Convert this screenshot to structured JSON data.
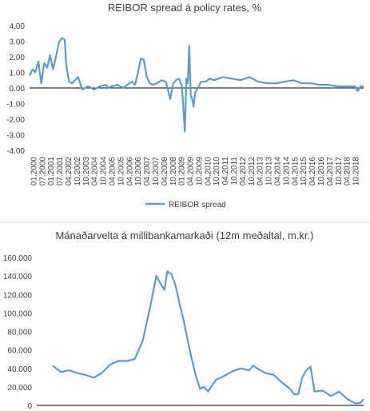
{
  "chart_data": [
    {
      "type": "line",
      "title": "REIBOR spread á policy rates, %",
      "xlabel": "",
      "ylabel": "",
      "ylim": [
        -4,
        4
      ],
      "yticks": [
        "4.00",
        "3.00",
        "2.00",
        "1.00",
        "0.00",
        "-1.00",
        "-2.00",
        "-3.00",
        "-4.00"
      ],
      "xticks": [
        "01.2000",
        "07.2000",
        "01.2001",
        "07.2001",
        "04.2002",
        "10.2002",
        "10.2003",
        "04.2004",
        "10.2004",
        "04.2005",
        "10.2005",
        "04.2006",
        "10.2006",
        "04.2007",
        "10.2007",
        "04.2008",
        "10.2008",
        "01.2009",
        "04.2009",
        "10.2009",
        "04.2010",
        "10.2010",
        "04.2011",
        "10.2011",
        "04.2012",
        "10.2012",
        "04.2013",
        "10.2013",
        "04.2014",
        "10.2014",
        "04.2015",
        "10.2015",
        "04.2016",
        "10.2016",
        "04.2017",
        "10.2017",
        "04.2018",
        "10.2018"
      ],
      "legend": "bottom",
      "grid": false,
      "colors": {
        "line": "#5b9bd5",
        "zero_axis": "#000000"
      },
      "series": [
        {
          "name": "REIBOR spread",
          "x": [
            2000.0,
            2000.17,
            2000.33,
            2000.5,
            2000.67,
            2000.83,
            2001.0,
            2001.17,
            2001.33,
            2001.5,
            2001.67,
            2001.83,
            2002.0,
            2002.08,
            2002.17,
            2002.25,
            2002.42,
            2002.58,
            2002.75,
            2003.0,
            2003.33,
            2003.67,
            2004.0,
            2004.33,
            2004.5,
            2004.67,
            2005.0,
            2005.33,
            2005.67,
            2005.83,
            2006.0,
            2006.17,
            2006.33,
            2006.5,
            2006.67,
            2006.83,
            2007.0,
            2007.25,
            2007.5,
            2007.75,
            2008.0,
            2008.17,
            2008.33,
            2008.5,
            2008.67,
            2008.83,
            2008.92,
            2009.0,
            2009.08,
            2009.17,
            2009.25,
            2009.33,
            2009.42,
            2009.58,
            2009.75,
            2010.0,
            2010.25,
            2010.5,
            2011.0,
            2011.5,
            2012.0,
            2012.5,
            2013.0,
            2013.5,
            2014.0,
            2014.5,
            2015.0,
            2015.5,
            2016.0,
            2016.5,
            2017.0,
            2017.5,
            2018.0,
            2018.5,
            2018.67,
            2018.83,
            2019.0
          ],
          "y": [
            0.8,
            1.2,
            1.0,
            1.7,
            0.3,
            1.6,
            1.3,
            2.1,
            1.2,
            2.0,
            2.9,
            3.2,
            3.1,
            1.5,
            0.9,
            0.4,
            0.3,
            0.5,
            0.7,
            -0.1,
            0.1,
            -0.1,
            0.1,
            0.2,
            0.0,
            0.1,
            0.2,
            0.0,
            0.3,
            0.4,
            0.2,
            1.0,
            1.9,
            1.8,
            0.7,
            0.3,
            0.2,
            0.3,
            0.5,
            0.4,
            -0.7,
            0.3,
            0.5,
            0.6,
            0.1,
            -2.8,
            0.6,
            0.3,
            2.7,
            -0.5,
            -0.7,
            -1.2,
            -0.3,
            0.0,
            0.4,
            0.4,
            0.6,
            0.5,
            0.7,
            0.6,
            0.5,
            0.7,
            0.4,
            0.3,
            0.3,
            0.4,
            0.5,
            0.3,
            0.3,
            0.2,
            0.2,
            0.1,
            0.1,
            0.1,
            -0.2,
            0.1,
            0.1
          ]
        }
      ]
    },
    {
      "type": "line",
      "title": "Mánaðarvelta á millibankamarkaði (12m meðaltal, m.kr.)",
      "xlabel": "",
      "ylabel": "",
      "ylim": [
        0,
        160000
      ],
      "yticks": [
        "160,000",
        "140,000",
        "120,000",
        "100,000",
        "80,000",
        "60,000",
        "40,000",
        "20,000",
        "0"
      ],
      "grid": false,
      "colors": {
        "line": "#5b9bd5",
        "axis": "#000000"
      },
      "series": [
        {
          "x": [
            2000.0,
            2000.5,
            2001.0,
            2001.5,
            2002.0,
            2002.5,
            2003.0,
            2003.5,
            2004.0,
            2004.5,
            2005.0,
            2005.5,
            2005.75,
            2006.0,
            2006.33,
            2006.58,
            2006.83,
            2007.0,
            2007.25,
            2007.5,
            2007.75,
            2008.0,
            2008.25,
            2008.5,
            2008.75,
            2009.0,
            2009.25,
            2009.5,
            2009.75,
            2010.0,
            2010.5,
            2011.0,
            2011.5,
            2012.0,
            2012.25,
            2012.5,
            2013.0,
            2013.5,
            2014.0,
            2014.5,
            2014.75,
            2015.0,
            2015.25,
            2015.5,
            2015.75,
            2016.0,
            2016.5,
            2017.0,
            2017.5,
            2018.0,
            2018.5,
            2018.83,
            2019.0
          ],
          "y": [
            43000,
            36000,
            38000,
            35000,
            33000,
            30000,
            35000,
            44000,
            48000,
            48000,
            50000,
            70000,
            90000,
            110000,
            140000,
            132000,
            125000,
            145000,
            142000,
            130000,
            110000,
            92000,
            70000,
            50000,
            32000,
            18000,
            20000,
            15000,
            22000,
            28000,
            32000,
            37000,
            40000,
            38000,
            43000,
            40000,
            35000,
            33000,
            25000,
            18000,
            12000,
            12000,
            30000,
            38000,
            42000,
            15000,
            16000,
            10000,
            15000,
            7000,
            2000,
            3000,
            7000
          ]
        }
      ]
    }
  ]
}
